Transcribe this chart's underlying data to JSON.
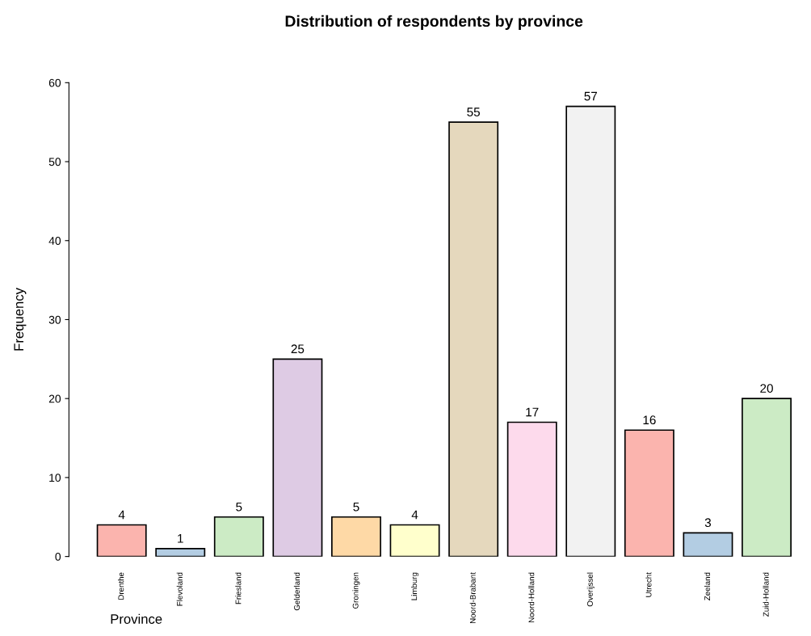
{
  "chart_data": {
    "type": "bar",
    "title": "Distribution of respondents by province",
    "xlabel": "Province",
    "ylabel": "Frequency",
    "categories": [
      "Drenthe",
      "Flevoland",
      "Friesland",
      "Gelderland",
      "Groningen",
      "Limburg",
      "Noord-Brabant",
      "Noord-Holland",
      "Overijssel",
      "Utrecht",
      "Zeeland",
      "Zuid-Holland"
    ],
    "values": [
      4,
      1,
      5,
      25,
      5,
      4,
      55,
      17,
      57,
      16,
      3,
      20
    ],
    "colors": [
      "#fbb4ae",
      "#b3cde3",
      "#ccebc5",
      "#decbe4",
      "#fed9a6",
      "#ffffcc",
      "#e5d8bd",
      "#fddaec",
      "#f2f2f2",
      "#fbb4ae",
      "#b3cde3",
      "#ccebc5"
    ],
    "ylim": [
      0,
      60
    ],
    "yticks": [
      0,
      10,
      20,
      30,
      40,
      50,
      60
    ],
    "data_labels": true,
    "grid": false,
    "legend": false
  }
}
